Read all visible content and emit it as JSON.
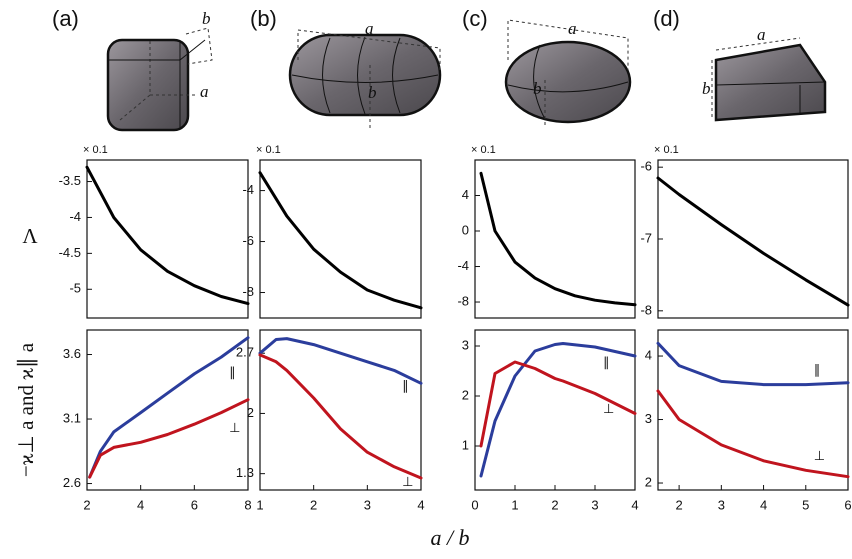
{
  "panel_labels": [
    "(a)",
    "(b)",
    "(c)",
    "(d)"
  ],
  "shape_labels": [
    [
      "b",
      "a"
    ],
    [
      "a",
      "b"
    ],
    [
      "a",
      "b"
    ],
    [
      "a",
      "b"
    ]
  ],
  "x_label": "a / b",
  "y_labels": [
    "Λ",
    "−ϰ⊥ a and ϰ∥ a"
  ],
  "chart_data": [
    {
      "type": "line",
      "y_multiplier": "× 0.1",
      "x": [
        2,
        3,
        4,
        5,
        6,
        7,
        8
      ],
      "values": [
        -3.3,
        -4.0,
        -4.45,
        -4.75,
        -4.95,
        -5.1,
        -5.2
      ],
      "color": "#000000",
      "xlim": [
        2,
        8
      ],
      "ylim": [
        -5.4,
        -3.2
      ],
      "yticks": [
        -3.5,
        -4,
        -4.5,
        -5
      ]
    },
    {
      "type": "line",
      "y_multiplier": "× 0.1",
      "x": [
        1,
        1.5,
        2,
        2.5,
        3,
        3.5,
        4
      ],
      "values": [
        -3.3,
        -5.0,
        -6.3,
        -7.2,
        -7.9,
        -8.3,
        -8.6
      ],
      "color": "#000000",
      "xlim": [
        1,
        4
      ],
      "ylim": [
        -9,
        -2.8
      ],
      "yticks": [
        -4,
        -6,
        -8
      ]
    },
    {
      "type": "line",
      "y_multiplier": "× 0.1",
      "x": [
        0.15,
        0.5,
        1,
        1.5,
        2,
        2.5,
        3,
        3.5,
        4
      ],
      "values": [
        6.5,
        0,
        -3.5,
        -5.3,
        -6.5,
        -7.3,
        -7.8,
        -8.1,
        -8.3
      ],
      "color": "#000000",
      "xlim": [
        0,
        4
      ],
      "ylim": [
        -9.8,
        8
      ],
      "yticks": [
        4,
        0,
        -4,
        -8
      ]
    },
    {
      "type": "line",
      "y_multiplier": "× 0.1",
      "x": [
        1.5,
        2,
        3,
        4,
        5,
        6
      ],
      "values": [
        -6.15,
        -6.38,
        -6.8,
        -7.2,
        -7.57,
        -7.92
      ],
      "color": "#000000",
      "xlim": [
        1.5,
        6
      ],
      "ylim": [
        -8.1,
        -5.9
      ],
      "yticks": [
        -6,
        -7,
        -8
      ]
    },
    {
      "type": "line",
      "x": [
        2.1,
        2.5,
        3,
        4,
        5,
        6,
        7,
        8
      ],
      "series": [
        {
          "name": "∥",
          "color": "#2b3d9c",
          "values": [
            2.65,
            2.85,
            3.0,
            3.15,
            3.3,
            3.45,
            3.58,
            3.73
          ]
        },
        {
          "name": "⊥",
          "color": "#c0141e",
          "values": [
            2.65,
            2.82,
            2.88,
            2.92,
            2.98,
            3.06,
            3.15,
            3.25
          ]
        }
      ],
      "xlim": [
        2,
        8
      ],
      "ylim": [
        2.55,
        3.79
      ],
      "xticks": [
        2,
        4,
        6,
        8
      ],
      "yticks": [
        2.6,
        3.1,
        3.6
      ]
    },
    {
      "type": "line",
      "x": [
        1,
        1.3,
        1.5,
        2,
        2.5,
        3,
        3.5,
        4
      ],
      "series": [
        {
          "name": "∥",
          "color": "#2b3d9c",
          "values": [
            2.7,
            2.86,
            2.87,
            2.8,
            2.7,
            2.6,
            2.5,
            2.35
          ]
        },
        {
          "name": "⊥",
          "color": "#c0141e",
          "values": [
            2.68,
            2.6,
            2.5,
            2.18,
            1.82,
            1.55,
            1.38,
            1.25
          ]
        }
      ],
      "xlim": [
        1,
        4
      ],
      "ylim": [
        1.11,
        2.97
      ],
      "xticks": [
        1,
        2,
        3,
        4
      ],
      "yticks": [
        1.3,
        2,
        2.7
      ]
    },
    {
      "type": "line",
      "x": [
        0.15,
        0.5,
        1,
        1.5,
        2,
        2.2,
        3,
        4
      ],
      "series": [
        {
          "name": "∥",
          "color": "#2b3d9c",
          "values": [
            0.4,
            1.5,
            2.4,
            2.9,
            3.03,
            3.05,
            2.98,
            2.8
          ]
        },
        {
          "name": "⊥",
          "color": "#c0141e",
          "values": [
            1.0,
            2.45,
            2.68,
            2.55,
            2.35,
            2.3,
            2.05,
            1.65
          ]
        }
      ],
      "xlim": [
        0,
        4
      ],
      "ylim": [
        0.12,
        3.32
      ],
      "xticks": [
        0,
        1,
        2,
        3,
        4
      ],
      "yticks": [
        1,
        2,
        3
      ]
    },
    {
      "type": "line",
      "x": [
        1.5,
        2,
        3,
        4,
        5,
        6
      ],
      "series": [
        {
          "name": "∥",
          "color": "#2b3d9c",
          "values": [
            4.2,
            3.85,
            3.6,
            3.55,
            3.55,
            3.58
          ]
        },
        {
          "name": "⊥",
          "color": "#c0141e",
          "values": [
            3.45,
            3.0,
            2.6,
            2.35,
            2.2,
            2.1
          ]
        }
      ],
      "xlim": [
        1.5,
        6
      ],
      "ylim": [
        1.89,
        4.41
      ],
      "xticks": [
        2,
        3,
        4,
        5,
        6
      ],
      "yticks": [
        2,
        3,
        4
      ]
    }
  ]
}
